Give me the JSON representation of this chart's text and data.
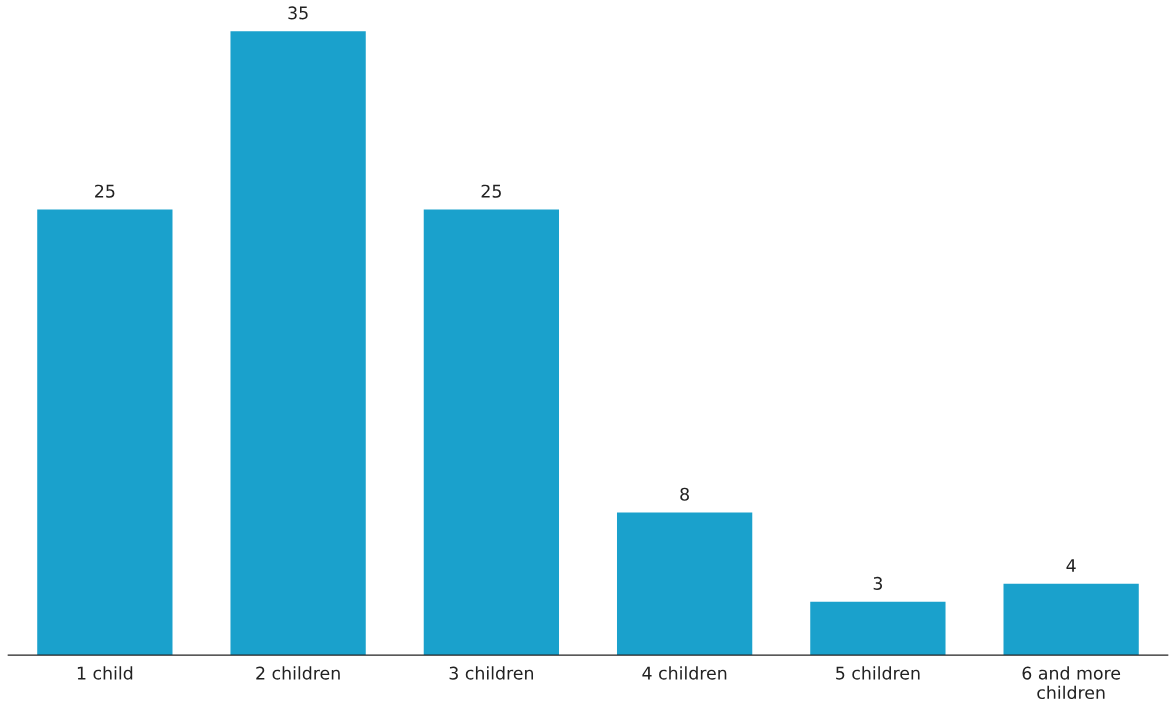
{
  "chart_data": {
    "type": "bar",
    "categories": [
      "1 child",
      "2 children",
      "3 children",
      "4 children",
      "5 children",
      "6 and more\nchildren"
    ],
    "values": [
      25,
      35,
      25,
      8,
      3,
      4
    ],
    "color": "#1aa1cc",
    "data_labels": true,
    "grid": false,
    "legend": false,
    "tick_labels": "x"
  }
}
